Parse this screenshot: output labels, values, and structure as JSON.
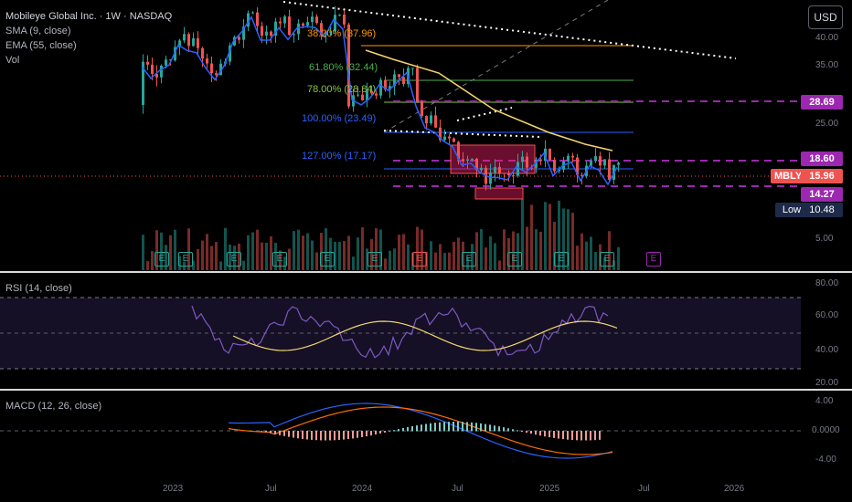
{
  "legend": {
    "symbol": "Mobileye Global Inc. · 1W · NASDAQ",
    "sma": "SMA (9, close)",
    "ema": "EMA (55, close)",
    "vol": "Vol"
  },
  "currency_button": "USD",
  "price_axis": [
    "40.00",
    "35.00",
    "25.00",
    "5.00"
  ],
  "fib_levels": [
    {
      "label": "38.20% (37.96)",
      "color": "#ff9800"
    },
    {
      "label": "61.80% (32.44)",
      "color": "#4caf50"
    },
    {
      "label": "78.00% (28.84)",
      "color": "#8bc34a"
    },
    {
      "label": "100.00% (23.49)",
      "color": "#2962ff"
    },
    {
      "label": "127.00% (17.17)",
      "color": "#2962ff"
    }
  ],
  "price_tags": {
    "level_1": "28.69",
    "level_2": "18.60",
    "ticker": "MBLY",
    "last_price": "15.96",
    "level_3": "14.27",
    "low_label": "Low",
    "low_value": "10.48"
  },
  "colors": {
    "up": "#26a69a",
    "down": "#ef5350",
    "purple": "#9c27b0",
    "fib_blue": "#2962ff",
    "ema": "#f5d76e"
  },
  "rsi": {
    "legend": "RSI (14, close)",
    "axis": [
      "80.00",
      "60.00",
      "40.00",
      "20.00"
    ]
  },
  "macd": {
    "legend": "MACD (12, 26, close)",
    "axis": [
      "4.00",
      "0.0000",
      "-4.00"
    ]
  },
  "time_axis": [
    "2023",
    "Jul",
    "2024",
    "Jul",
    "2025",
    "Jul",
    "2026"
  ],
  "earnings_marker": "E"
}
